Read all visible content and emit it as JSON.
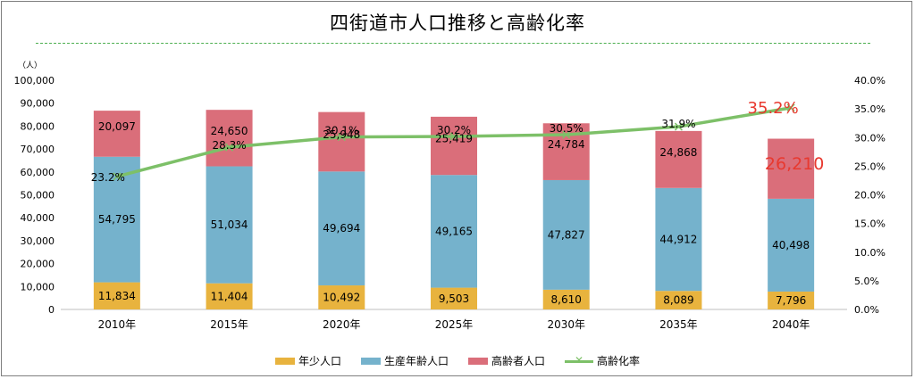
{
  "chart_data": {
    "type": "bar",
    "stacked": true,
    "title": "四街道市人口推移と高齢化率",
    "categories": [
      "2010年",
      "2015年",
      "2020年",
      "2025年",
      "2030年",
      "2035年",
      "2040年"
    ],
    "series": [
      {
        "name": "年少人口",
        "color": "#e8b33e",
        "values": [
          11834,
          11404,
          10492,
          9503,
          8610,
          8089,
          7796
        ],
        "labels": [
          "11,834",
          "11,404",
          "10,492",
          "9,503",
          "8,610",
          "8,089",
          "7,796"
        ]
      },
      {
        "name": "生産年齢人口",
        "color": "#75b2cc",
        "values": [
          54795,
          51034,
          49694,
          49165,
          47827,
          44912,
          40498
        ],
        "labels": [
          "54,795",
          "51,034",
          "49,694",
          "49,165",
          "47,827",
          "44,912",
          "40,498"
        ]
      },
      {
        "name": "高齢者人口",
        "color": "#da6e7a",
        "values": [
          20097,
          24650,
          25948,
          25419,
          24784,
          24868,
          26210
        ],
        "labels": [
          "20,097",
          "24,650",
          "25,948",
          "25,419",
          "24,784",
          "24,868",
          "26,210"
        ]
      }
    ],
    "line_series": {
      "name": "高齢化率",
      "color": "#7dc068",
      "values": [
        23.2,
        28.3,
        30.1,
        30.2,
        30.5,
        31.9,
        35.2
      ],
      "labels": [
        "23.2%",
        "28.3%",
        "30.1%",
        "30.2%",
        "30.5%",
        "31.9%",
        "35.2%"
      ]
    },
    "y_left": {
      "unit": "（人）",
      "ylim": [
        0,
        100000
      ],
      "ticks": [
        "0",
        "10,000",
        "20,000",
        "30,000",
        "40,000",
        "50,000",
        "60,000",
        "70,000",
        "80,000",
        "90,000",
        "100,000"
      ]
    },
    "y_right": {
      "ylim": [
        0,
        40
      ],
      "ticks": [
        "0.0%",
        "5.0%",
        "10.0%",
        "15.0%",
        "20.0%",
        "25.0%",
        "30.0%",
        "35.0%",
        "40.0%"
      ]
    },
    "highlight_color": "#e8392f",
    "legend_position": "bottom"
  },
  "legend": {
    "youth": "年少人口",
    "working": "生産年齢人口",
    "elderly": "高齢者人口",
    "rate": "高齢化率",
    "rate_marker": "✕"
  }
}
